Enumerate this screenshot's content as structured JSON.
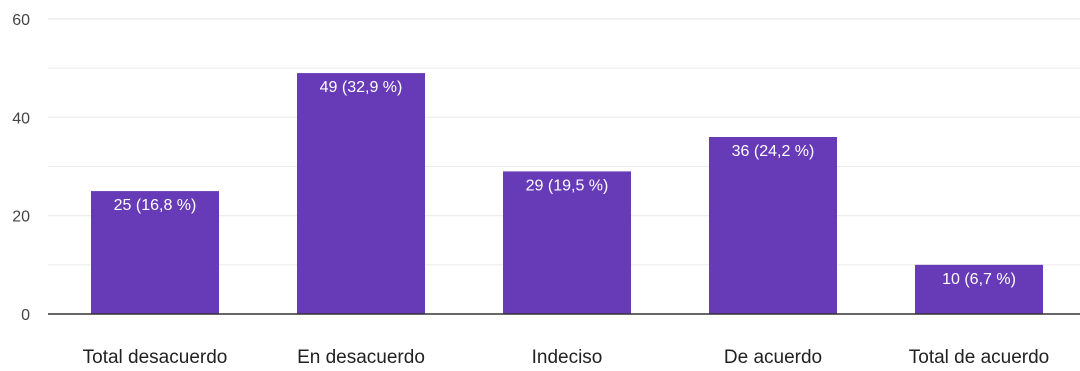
{
  "chart_data": {
    "type": "bar",
    "categories": [
      "Total desacuerdo",
      "En desacuerdo",
      "Indeciso",
      "De acuerdo",
      "Total de acuerdo"
    ],
    "values": [
      25,
      49,
      29,
      36,
      10
    ],
    "data_labels": [
      "25 (16,8 %)",
      "49 (32,9 %)",
      "29 (19,5 %)",
      "36 (24,2 %)",
      "10 (6,7 %)"
    ],
    "y_ticks": [
      "0",
      "20",
      "40",
      "60"
    ],
    "ylim": [
      0,
      60
    ],
    "grid": true,
    "colors": {
      "bar": "#673ab7",
      "grid": "#ebebeb",
      "axis": "#333333"
    }
  }
}
